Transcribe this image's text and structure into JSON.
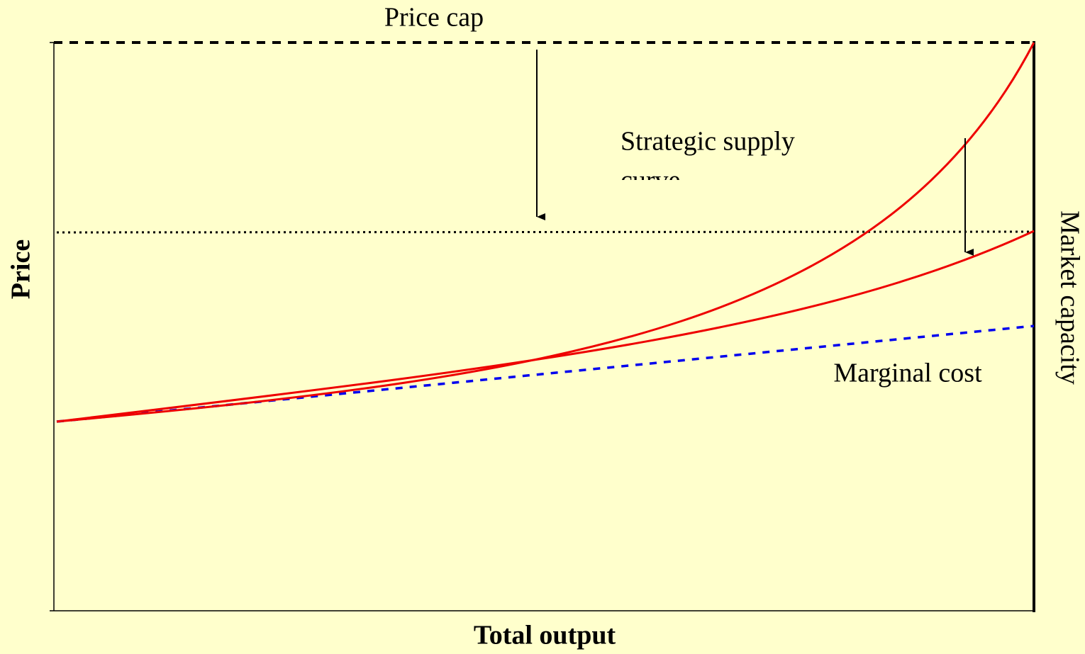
{
  "labels": {
    "price_cap": "Price cap",
    "strategic_supply": [
      "Strategic supply",
      "curve"
    ],
    "marginal_cost": "Marginal cost",
    "market_capacity": "Market capacity"
  },
  "axes": {
    "y_label": "Price",
    "x_label": "Total output"
  }
}
